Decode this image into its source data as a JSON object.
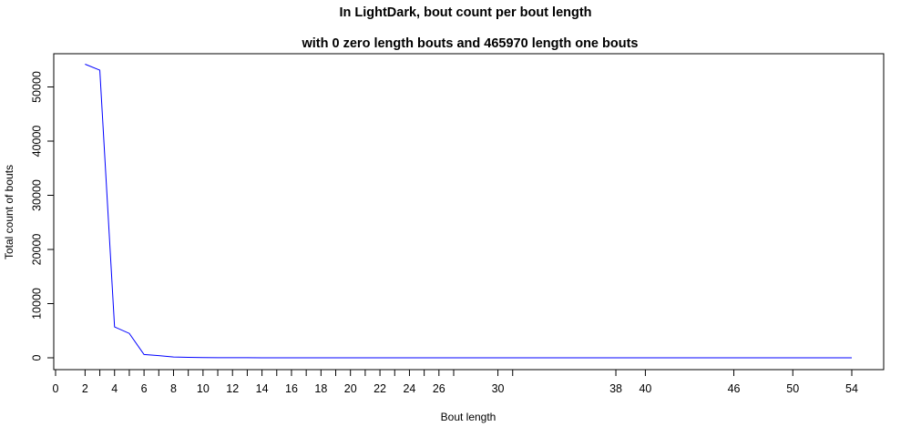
{
  "chart_data": {
    "type": "line",
    "title": "In LightDark, bout count per bout length",
    "subtitle": "with 0 zero length bouts and 465970 length one bouts",
    "xlabel": "Bout length",
    "ylabel": "Total count of bouts",
    "xlim": [
      0,
      54
    ],
    "ylim": [
      0,
      55000
    ],
    "grid": false,
    "series_color": "#0000ff",
    "y_ticks": [
      0,
      10000,
      20000,
      30000,
      40000,
      50000
    ],
    "y_tick_labels": [
      "0",
      "10000",
      "20000",
      "30000",
      "40000",
      "50000"
    ],
    "x_tick_marks": [
      0,
      2,
      3,
      4,
      5,
      6,
      7,
      8,
      9,
      10,
      11,
      12,
      13,
      14,
      15,
      16,
      17,
      18,
      19,
      20,
      21,
      22,
      23,
      24,
      25,
      26,
      27,
      30,
      31,
      38,
      40,
      46,
      50,
      54
    ],
    "x_tick_labels": [
      {
        "x": 0,
        "label": "0"
      },
      {
        "x": 2,
        "label": "2"
      },
      {
        "x": 4,
        "label": "4"
      },
      {
        "x": 6,
        "label": "6"
      },
      {
        "x": 8,
        "label": "8"
      },
      {
        "x": 10,
        "label": "10"
      },
      {
        "x": 12,
        "label": "12"
      },
      {
        "x": 14,
        "label": "14"
      },
      {
        "x": 16,
        "label": "16"
      },
      {
        "x": 18,
        "label": "18"
      },
      {
        "x": 20,
        "label": "20"
      },
      {
        "x": 22,
        "label": "22"
      },
      {
        "x": 24,
        "label": "24"
      },
      {
        "x": 26,
        "label": "26"
      },
      {
        "x": 30,
        "label": "30"
      },
      {
        "x": 38,
        "label": "38"
      },
      {
        "x": 40,
        "label": "40"
      },
      {
        "x": 46,
        "label": "46"
      },
      {
        "x": 50,
        "label": "50"
      },
      {
        "x": 54,
        "label": "54"
      }
    ],
    "x": [
      2,
      3,
      4,
      5,
      6,
      7,
      8,
      9,
      10,
      11,
      12,
      13,
      14,
      15,
      16,
      17,
      18,
      19,
      20,
      21,
      22,
      23,
      24,
      25,
      26,
      27,
      30,
      31,
      38,
      40,
      46,
      50,
      54
    ],
    "y": [
      54200,
      53100,
      5700,
      4500,
      600,
      400,
      150,
      80,
      50,
      30,
      20,
      15,
      10,
      8,
      6,
      5,
      4,
      3,
      3,
      2,
      2,
      2,
      2,
      1,
      1,
      1,
      1,
      1,
      1,
      1,
      1,
      1,
      1
    ]
  }
}
